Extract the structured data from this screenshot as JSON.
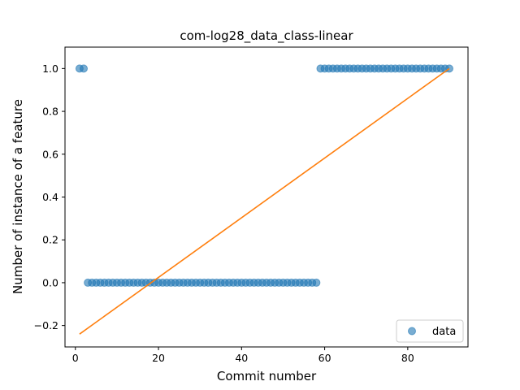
{
  "chart_data": {
    "type": "scatter",
    "title": "com-log28_data_class-linear",
    "xlabel": "Commit number",
    "ylabel": "Number of instance of a feature",
    "xlim": [
      -2.5,
      94.5
    ],
    "ylim": [
      -0.3,
      1.1
    ],
    "xticks": [
      0,
      20,
      40,
      60,
      80
    ],
    "yticks": [
      -0.2,
      0.0,
      0.2,
      0.4,
      0.6,
      0.8,
      1.0
    ],
    "ytick_labels": [
      "−0.2",
      "0.0",
      "0.2",
      "0.4",
      "0.6",
      "0.8",
      "1.0"
    ],
    "legend": {
      "label": "data",
      "placement": "lower-right"
    },
    "series": [
      {
        "name": "data",
        "kind": "scatter",
        "color": "#1f77b4",
        "x": [
          1,
          2,
          3,
          4,
          5,
          6,
          7,
          8,
          9,
          10,
          11,
          12,
          13,
          14,
          15,
          16,
          17,
          18,
          19,
          20,
          21,
          22,
          23,
          24,
          25,
          26,
          27,
          28,
          29,
          30,
          31,
          32,
          33,
          34,
          35,
          36,
          37,
          38,
          39,
          40,
          41,
          42,
          43,
          44,
          45,
          46,
          47,
          48,
          49,
          50,
          51,
          52,
          53,
          54,
          55,
          56,
          57,
          58,
          59,
          60,
          61,
          62,
          63,
          64,
          65,
          66,
          67,
          68,
          69,
          70,
          71,
          72,
          73,
          74,
          75,
          76,
          77,
          78,
          79,
          80,
          81,
          82,
          83,
          84,
          85,
          86,
          87,
          88,
          89,
          90
        ],
        "y": [
          1,
          1,
          0,
          0,
          0,
          0,
          0,
          0,
          0,
          0,
          0,
          0,
          0,
          0,
          0,
          0,
          0,
          0,
          0,
          0,
          0,
          0,
          0,
          0,
          0,
          0,
          0,
          0,
          0,
          0,
          0,
          0,
          0,
          0,
          0,
          0,
          0,
          0,
          0,
          0,
          0,
          0,
          0,
          0,
          0,
          0,
          0,
          0,
          0,
          0,
          0,
          0,
          0,
          0,
          0,
          0,
          0,
          0,
          1,
          1,
          1,
          1,
          1,
          1,
          1,
          1,
          1,
          1,
          1,
          1,
          1,
          1,
          1,
          1,
          1,
          1,
          1,
          1,
          1,
          1,
          1,
          1,
          1,
          1,
          1,
          1,
          1,
          1,
          1,
          1
        ]
      },
      {
        "kind": "line",
        "color": "#ff7f0e",
        "x": [
          1,
          90
        ],
        "y": [
          -0.24,
          1.0
        ]
      }
    ]
  }
}
